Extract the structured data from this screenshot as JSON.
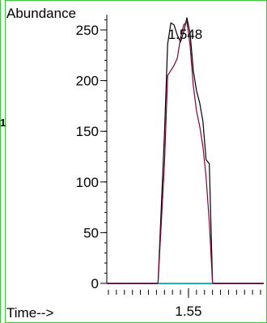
{
  "side_marker": "1",
  "colors": {
    "frame": "#33cc33",
    "marker": "#ff0000",
    "axis": "#000000",
    "series_black": "#000000",
    "series_maroon": "#800040",
    "baseline": "#00cccc"
  },
  "chart_data": {
    "type": "line",
    "ylabel": "Abundance",
    "xlabel": "Time-->",
    "peak_label": "1.548",
    "peak_label_x": 1.548,
    "xlim": [
      1.499,
      1.597
    ],
    "ylim": [
      0,
      265
    ],
    "x_ticks": [
      1.55
    ],
    "x_tick_labels": [
      "1.55"
    ],
    "x_minor_tick_step": 0.005,
    "y_ticks": [
      0,
      50,
      100,
      150,
      200,
      250
    ],
    "y_tick_labels": [
      "0",
      "50",
      "100",
      "150",
      "200",
      "250"
    ],
    "y_minor_tick_step": 10,
    "grid": false,
    "series": [
      {
        "color": "#000000",
        "x": [
          1.499,
          1.531,
          1.535,
          1.537,
          1.539,
          1.541,
          1.543,
          1.545,
          1.547,
          1.549,
          1.551,
          1.553,
          1.555,
          1.557,
          1.559,
          1.561,
          1.563,
          1.565,
          1.567,
          1.597
        ],
        "y": [
          0,
          0,
          148,
          236,
          257,
          255,
          245,
          238,
          248,
          262,
          247,
          210,
          190,
          178,
          160,
          122,
          118,
          0,
          0,
          0
        ]
      },
      {
        "color": "#800040",
        "x": [
          1.499,
          1.531,
          1.535,
          1.537,
          1.539,
          1.541,
          1.543,
          1.545,
          1.547,
          1.549,
          1.551,
          1.553,
          1.555,
          1.557,
          1.559,
          1.561,
          1.563,
          1.565,
          1.597
        ],
        "y": [
          0,
          0,
          118,
          205,
          210,
          215,
          222,
          242,
          255,
          258,
          235,
          195,
          170,
          155,
          135,
          105,
          60,
          0,
          0
        ]
      },
      {
        "color": "#00cccc",
        "x": [
          1.531,
          1.565
        ],
        "y": [
          0,
          0
        ]
      }
    ]
  }
}
